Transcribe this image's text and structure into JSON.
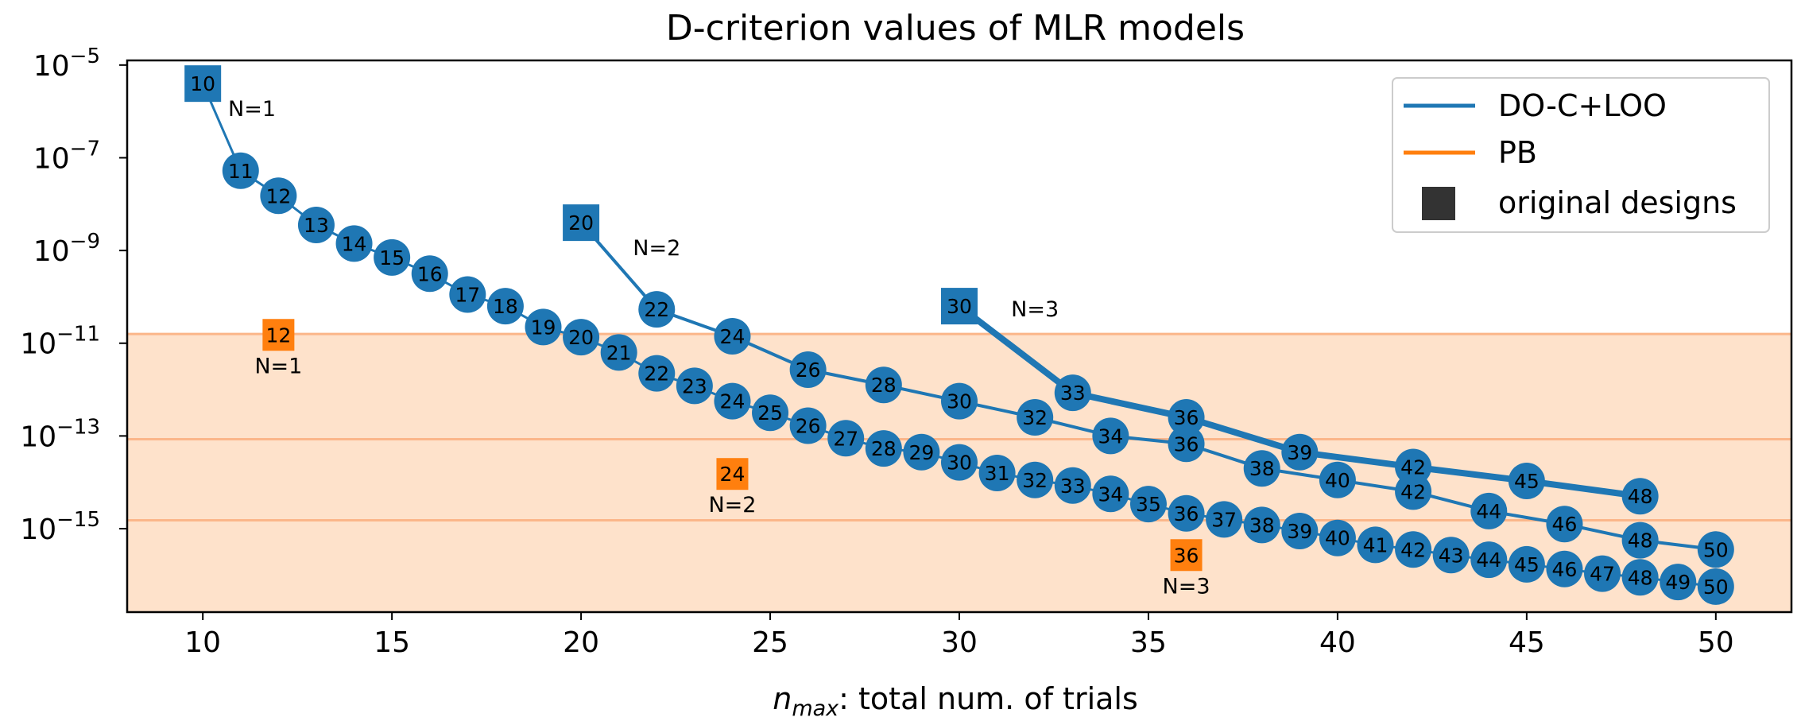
{
  "chart_data": {
    "type": "line",
    "title": "D-criterion values of MLR models",
    "xlabel_italic": "n",
    "xlabel_sub": "max",
    "xlabel_rest": ": total num. of trials",
    "ylabel": "",
    "y_scale": "log",
    "xlim": [
      8,
      52
    ],
    "ylim_exp": [
      -16.8,
      -4.9
    ],
    "x_ticks": [
      10,
      15,
      20,
      25,
      30,
      35,
      40,
      45,
      50
    ],
    "y_ticks_exp": [
      -5,
      -7,
      -9,
      -11,
      -13,
      -15
    ],
    "grid": false,
    "legend_position": "top-right",
    "legend": [
      {
        "label": "DO-C+LOO",
        "kind": "line",
        "color": "#1f77b4"
      },
      {
        "label": "PB",
        "kind": "line",
        "color": "#ff7f0e"
      },
      {
        "label": "original designs",
        "kind": "square",
        "color": "#333333"
      }
    ],
    "bands": [
      {
        "from_exp": -14.82,
        "to_exp": -16.8,
        "color": "#ffa356"
      },
      {
        "from_exp": -13.07,
        "to_exp": -16.8,
        "color": "#fec595"
      },
      {
        "from_exp": -10.8,
        "to_exp": -16.8,
        "color": "#fee2cb"
      }
    ],
    "band_lines_exp": [
      -10.8,
      -13.07,
      -14.82
    ],
    "series": [
      {
        "name": "DO-C+LOO",
        "label": "N=1",
        "color": "#1f77b4",
        "line_width": 3,
        "origin": {
          "x": 10,
          "y_exp": -5.4,
          "label": "10"
        },
        "n_label": {
          "text": "N=1",
          "x": 11.3,
          "y_exp": -5.95
        },
        "points": [
          {
            "x": 11,
            "y_exp": -7.28
          },
          {
            "x": 12,
            "y_exp": -7.82
          },
          {
            "x": 13,
            "y_exp": -8.45
          },
          {
            "x": 14,
            "y_exp": -8.85
          },
          {
            "x": 15,
            "y_exp": -9.15
          },
          {
            "x": 16,
            "y_exp": -9.5
          },
          {
            "x": 17,
            "y_exp": -9.95
          },
          {
            "x": 18,
            "y_exp": -10.2
          },
          {
            "x": 19,
            "y_exp": -10.65
          },
          {
            "x": 20,
            "y_exp": -10.87
          },
          {
            "x": 21,
            "y_exp": -11.2
          },
          {
            "x": 22,
            "y_exp": -11.65
          },
          {
            "x": 23,
            "y_exp": -11.92
          },
          {
            "x": 24,
            "y_exp": -12.25
          },
          {
            "x": 25,
            "y_exp": -12.5
          },
          {
            "x": 26,
            "y_exp": -12.78
          },
          {
            "x": 27,
            "y_exp": -13.05
          },
          {
            "x": 28,
            "y_exp": -13.27
          },
          {
            "x": 29,
            "y_exp": -13.35
          },
          {
            "x": 30,
            "y_exp": -13.57
          },
          {
            "x": 31,
            "y_exp": -13.8
          },
          {
            "x": 32,
            "y_exp": -13.95
          },
          {
            "x": 33,
            "y_exp": -14.07
          },
          {
            "x": 34,
            "y_exp": -14.25
          },
          {
            "x": 35,
            "y_exp": -14.47
          },
          {
            "x": 36,
            "y_exp": -14.67
          },
          {
            "x": 37,
            "y_exp": -14.8
          },
          {
            "x": 38,
            "y_exp": -14.92
          },
          {
            "x": 39,
            "y_exp": -15.05
          },
          {
            "x": 40,
            "y_exp": -15.2
          },
          {
            "x": 41,
            "y_exp": -15.35
          },
          {
            "x": 42,
            "y_exp": -15.45
          },
          {
            "x": 43,
            "y_exp": -15.57
          },
          {
            "x": 44,
            "y_exp": -15.67
          },
          {
            "x": 45,
            "y_exp": -15.77
          },
          {
            "x": 46,
            "y_exp": -15.87
          },
          {
            "x": 47,
            "y_exp": -15.97
          },
          {
            "x": 48,
            "y_exp": -16.05
          },
          {
            "x": 49,
            "y_exp": -16.15
          },
          {
            "x": 50,
            "y_exp": -16.25
          }
        ]
      },
      {
        "name": "DO-C+LOO",
        "label": "N=2",
        "color": "#1f77b4",
        "line_width": 4,
        "origin": {
          "x": 20,
          "y_exp": -8.4,
          "label": "20"
        },
        "n_label": {
          "text": "N=2",
          "x": 22.0,
          "y_exp": -8.95
        },
        "points": [
          {
            "x": 22,
            "y_exp": -10.27
          },
          {
            "x": 24,
            "y_exp": -10.85
          },
          {
            "x": 26,
            "y_exp": -11.57
          },
          {
            "x": 28,
            "y_exp": -11.9
          },
          {
            "x": 30,
            "y_exp": -12.25
          },
          {
            "x": 32,
            "y_exp": -12.6
          },
          {
            "x": 34,
            "y_exp": -13.0
          },
          {
            "x": 36,
            "y_exp": -13.17
          },
          {
            "x": 38,
            "y_exp": -13.7
          },
          {
            "x": 40,
            "y_exp": -13.95
          },
          {
            "x": 42,
            "y_exp": -14.2
          },
          {
            "x": 44,
            "y_exp": -14.62
          },
          {
            "x": 46,
            "y_exp": -14.9
          },
          {
            "x": 48,
            "y_exp": -15.25
          },
          {
            "x": 50,
            "y_exp": -15.45
          }
        ]
      },
      {
        "name": "DO-C+LOO",
        "label": "N=3",
        "color": "#1f77b4",
        "line_width": 8,
        "origin": {
          "x": 30,
          "y_exp": -10.2,
          "label": "30"
        },
        "n_label": {
          "text": "N=3",
          "x": 32.0,
          "y_exp": -10.27
        },
        "points": [
          {
            "x": 33,
            "y_exp": -12.07
          },
          {
            "x": 36,
            "y_exp": -12.6
          },
          {
            "x": 39,
            "y_exp": -13.35
          },
          {
            "x": 42,
            "y_exp": -13.67
          },
          {
            "x": 45,
            "y_exp": -13.97
          },
          {
            "x": 48,
            "y_exp": -14.3
          }
        ]
      }
    ],
    "pb_points": [
      {
        "x": 12,
        "y_exp": -10.82,
        "label": "12",
        "n_label": "N=1"
      },
      {
        "x": 24,
        "y_exp": -13.82,
        "label": "24",
        "n_label": "N=2"
      },
      {
        "x": 36,
        "y_exp": -15.57,
        "label": "36",
        "n_label": "N=3"
      }
    ]
  }
}
